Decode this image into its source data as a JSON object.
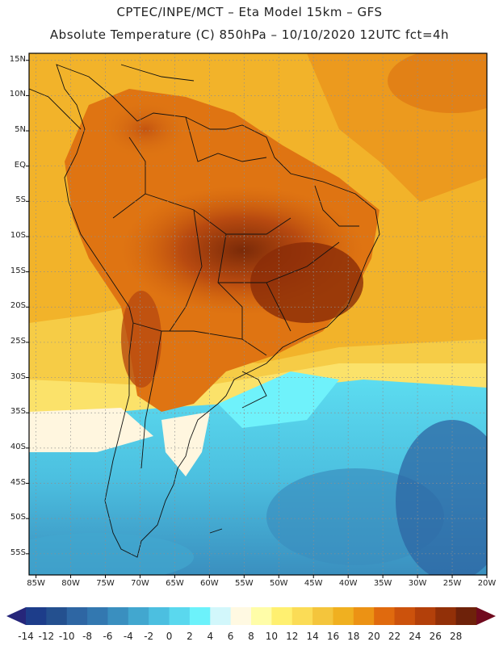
{
  "title": {
    "line1": "CPTEC/INPE/MCT –  Eta Model 15km – GFS",
    "line2": "Absolute Temperature (C) 850hPa – 10/10/2020 12UTC fct=4h"
  },
  "map": {
    "lon_range": [
      -86,
      -20
    ],
    "lat_range": [
      -58,
      16
    ],
    "lat_ticks": [
      {
        "label": "15N",
        "value": 15
      },
      {
        "label": "10N",
        "value": 10
      },
      {
        "label": "5N",
        "value": 5
      },
      {
        "label": "EQ",
        "value": 0
      },
      {
        "label": "5S",
        "value": -5
      },
      {
        "label": "10S",
        "value": -10
      },
      {
        "label": "15S",
        "value": -15
      },
      {
        "label": "20S",
        "value": -20
      },
      {
        "label": "25S",
        "value": -25
      },
      {
        "label": "30S",
        "value": -30
      },
      {
        "label": "35S",
        "value": -35
      },
      {
        "label": "40S",
        "value": -40
      },
      {
        "label": "45S",
        "value": -45
      },
      {
        "label": "50S",
        "value": -50
      },
      {
        "label": "55S",
        "value": -55
      }
    ],
    "lon_ticks": [
      {
        "label": "85W",
        "value": -85
      },
      {
        "label": "80W",
        "value": -80
      },
      {
        "label": "75W",
        "value": -75
      },
      {
        "label": "70W",
        "value": -70
      },
      {
        "label": "65W",
        "value": -65
      },
      {
        "label": "60W",
        "value": -60
      },
      {
        "label": "55W",
        "value": -55
      },
      {
        "label": "50W",
        "value": -50
      },
      {
        "label": "45W",
        "value": -45
      },
      {
        "label": "40W",
        "value": -40
      },
      {
        "label": "35W",
        "value": -35
      },
      {
        "label": "30W",
        "value": -30
      },
      {
        "label": "25W",
        "value": -25
      },
      {
        "label": "20W",
        "value": -20
      }
    ],
    "gridlines": true
  },
  "colorbar": {
    "labels": [
      "-14",
      "-12",
      "-10",
      "-8",
      "-6",
      "-4",
      "-2",
      "0",
      "2",
      "4",
      "6",
      "8",
      "10",
      "12",
      "14",
      "16",
      "18",
      "20",
      "22",
      "24",
      "26",
      "28"
    ],
    "colors": [
      "#1d3d8a",
      "#24508f",
      "#2e66a3",
      "#3378b0",
      "#3a8fbf",
      "#42a7cf",
      "#4cbfe0",
      "#5ad8ee",
      "#6cf2fb",
      "#d2f7fb",
      "#fff9e2",
      "#fffda8",
      "#fff070",
      "#fbdc56",
      "#f4c53c",
      "#f0b020",
      "#ec9214",
      "#e06a0e",
      "#cc520c",
      "#b3400a",
      "#923008",
      "#6e220a"
    ],
    "low_arrow": "#26267a",
    "high_arrow": "#700a1e"
  }
}
